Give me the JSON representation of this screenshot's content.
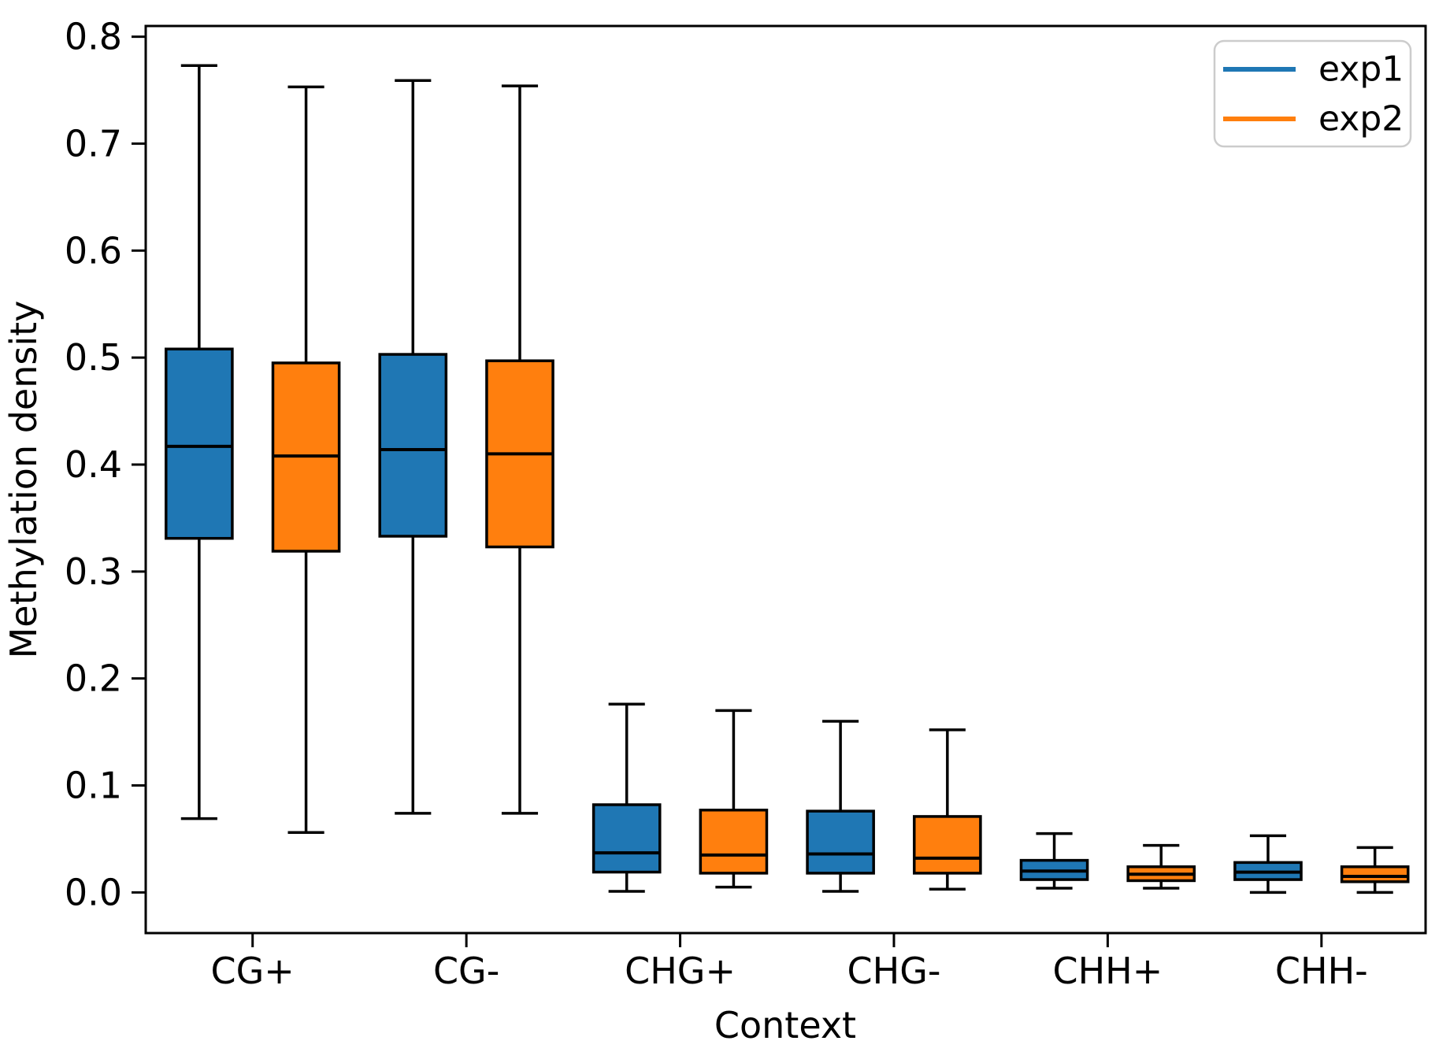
{
  "chart_data": {
    "type": "boxplot",
    "title": "",
    "xlabel": "Context",
    "ylabel": "Methylation density",
    "categories": [
      "CG+",
      "CG-",
      "CHG+",
      "CHG-",
      "CHH+",
      "CHH-"
    ],
    "ytick_labels": [
      "0.0",
      "0.1",
      "0.2",
      "0.3",
      "0.4",
      "0.5",
      "0.6",
      "0.7",
      "0.8"
    ],
    "ytick_values": [
      0.0,
      0.1,
      0.2,
      0.3,
      0.4,
      0.5,
      0.6,
      0.7,
      0.8
    ],
    "ylim": [
      -0.038,
      0.81
    ],
    "xlim_units": [
      0.5,
      6.487
    ],
    "grid": false,
    "group_offset_units": 0.25,
    "box_width_units": 0.31,
    "cap_width_units": 0.17,
    "box_edge_color": "#000000",
    "legend": {
      "position": "upper-right",
      "border_color": "#cccccc",
      "entries": [
        {
          "label": "exp1",
          "color": "#1f77b4"
        },
        {
          "label": "exp2",
          "color": "#ff7f0e"
        }
      ]
    },
    "series": [
      {
        "name": "exp1",
        "color": "#1f77b4",
        "boxes": [
          {
            "category": "CG+",
            "whislo": 0.069,
            "q1": 0.331,
            "med": 0.417,
            "q3": 0.508,
            "whishi": 0.773
          },
          {
            "category": "CG-",
            "whislo": 0.074,
            "q1": 0.333,
            "med": 0.414,
            "q3": 0.503,
            "whishi": 0.759
          },
          {
            "category": "CHG+",
            "whislo": 0.001,
            "q1": 0.019,
            "med": 0.037,
            "q3": 0.082,
            "whishi": 0.176
          },
          {
            "category": "CHG-",
            "whislo": 0.001,
            "q1": 0.018,
            "med": 0.036,
            "q3": 0.076,
            "whishi": 0.16
          },
          {
            "category": "CHH+",
            "whislo": 0.004,
            "q1": 0.012,
            "med": 0.02,
            "q3": 0.03,
            "whishi": 0.055
          },
          {
            "category": "CHH-",
            "whislo": 0.0,
            "q1": 0.012,
            "med": 0.019,
            "q3": 0.028,
            "whishi": 0.053
          }
        ]
      },
      {
        "name": "exp2",
        "color": "#ff7f0e",
        "boxes": [
          {
            "category": "CG+",
            "whislo": 0.056,
            "q1": 0.319,
            "med": 0.408,
            "q3": 0.495,
            "whishi": 0.753
          },
          {
            "category": "CG-",
            "whislo": 0.074,
            "q1": 0.323,
            "med": 0.41,
            "q3": 0.497,
            "whishi": 0.754
          },
          {
            "category": "CHG+",
            "whislo": 0.005,
            "q1": 0.018,
            "med": 0.035,
            "q3": 0.077,
            "whishi": 0.17
          },
          {
            "category": "CHG-",
            "whislo": 0.003,
            "q1": 0.018,
            "med": 0.032,
            "q3": 0.071,
            "whishi": 0.152
          },
          {
            "category": "CHH+",
            "whislo": 0.004,
            "q1": 0.011,
            "med": 0.017,
            "q3": 0.024,
            "whishi": 0.044
          },
          {
            "category": "CHH-",
            "whislo": 0.0,
            "q1": 0.01,
            "med": 0.015,
            "q3": 0.024,
            "whishi": 0.042
          }
        ]
      }
    ]
  }
}
